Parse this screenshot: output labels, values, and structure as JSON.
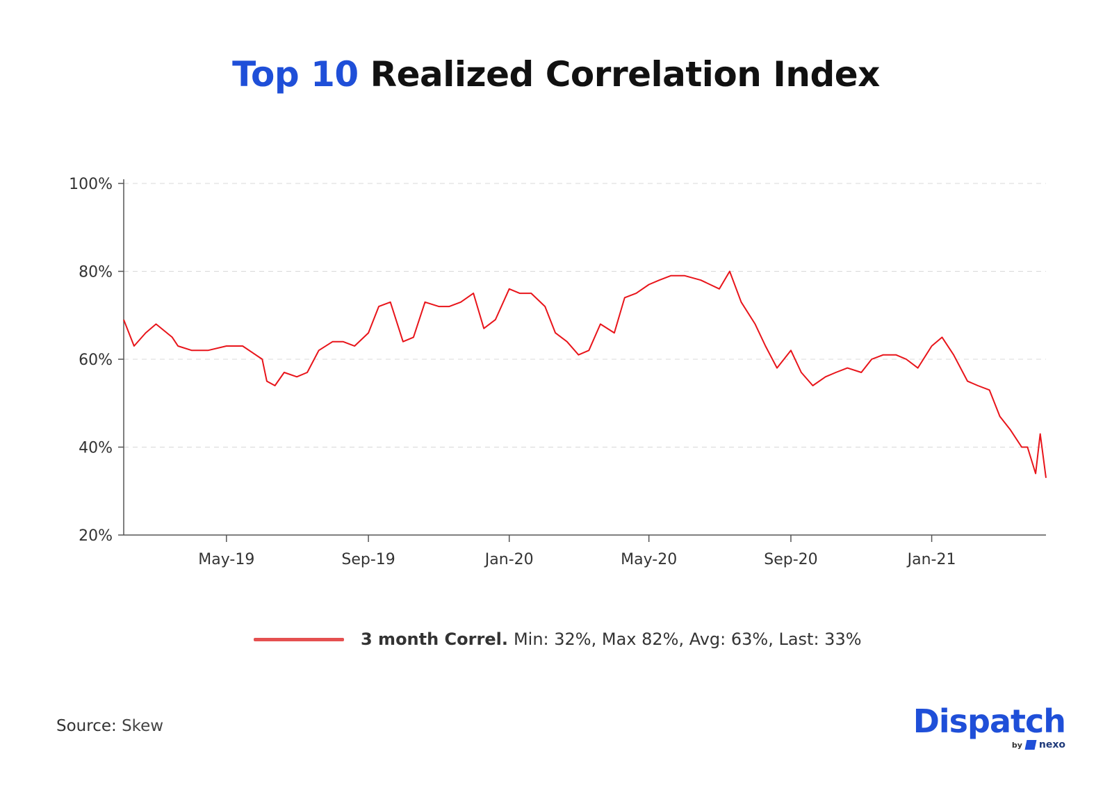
{
  "title": {
    "accent": "Top 10",
    "rest": "Realized Correlation Index"
  },
  "chart_data": {
    "type": "line",
    "title": "Top 10 Realized Correlation Index",
    "ylim": [
      20,
      100
    ],
    "yticks": [
      "100%",
      "80%",
      "60%",
      "40%",
      "20%"
    ],
    "ytick_values": [
      100,
      80,
      60,
      40,
      20
    ],
    "xlim": [
      "2019-02-01",
      "2021-04-10"
    ],
    "xticks": [
      "May-19",
      "Sep-19",
      "Jan-20",
      "May-20",
      "Sep-20",
      "Jan-21"
    ],
    "xtick_dates": [
      "2019-05-01",
      "2019-09-01",
      "2020-01-01",
      "2020-05-01",
      "2020-09-01",
      "2021-01-01"
    ],
    "grid": "horizontal dashed",
    "legend_position": "bottom-center",
    "series": [
      {
        "name": "3 month Correl.",
        "color": "#e8141a",
        "x": [
          "2019-02-01",
          "2019-02-10",
          "2019-02-20",
          "2019-03-01",
          "2019-03-15",
          "2019-03-20",
          "2019-04-01",
          "2019-04-15",
          "2019-05-01",
          "2019-05-15",
          "2019-06-01",
          "2019-06-05",
          "2019-06-12",
          "2019-06-20",
          "2019-07-01",
          "2019-07-10",
          "2019-07-20",
          "2019-08-01",
          "2019-08-10",
          "2019-08-20",
          "2019-09-01",
          "2019-09-10",
          "2019-09-20",
          "2019-10-01",
          "2019-10-10",
          "2019-10-20",
          "2019-11-01",
          "2019-11-10",
          "2019-11-20",
          "2019-12-01",
          "2019-12-10",
          "2019-12-20",
          "2020-01-01",
          "2020-01-10",
          "2020-01-20",
          "2020-02-01",
          "2020-02-10",
          "2020-02-20",
          "2020-03-01",
          "2020-03-10",
          "2020-03-20",
          "2020-04-01",
          "2020-04-10",
          "2020-04-20",
          "2020-05-01",
          "2020-05-10",
          "2020-05-20",
          "2020-06-01",
          "2020-06-15",
          "2020-07-01",
          "2020-07-10",
          "2020-07-20",
          "2020-08-01",
          "2020-08-10",
          "2020-08-20",
          "2020-09-01",
          "2020-09-10",
          "2020-09-20",
          "2020-10-01",
          "2020-10-10",
          "2020-10-20",
          "2020-11-01",
          "2020-11-10",
          "2020-11-20",
          "2020-12-01",
          "2020-12-10",
          "2020-12-20",
          "2021-01-01",
          "2021-01-10",
          "2021-01-20",
          "2021-02-01",
          "2021-02-10",
          "2021-02-20",
          "2021-03-01",
          "2021-03-10",
          "2021-03-20",
          "2021-03-25",
          "2021-04-01",
          "2021-04-05",
          "2021-04-10"
        ],
        "y": [
          69,
          63,
          66,
          68,
          65,
          63,
          62,
          62,
          63,
          63,
          60,
          55,
          54,
          57,
          56,
          57,
          62,
          64,
          64,
          63,
          66,
          72,
          73,
          64,
          65,
          73,
          72,
          72,
          73,
          75,
          67,
          69,
          76,
          75,
          75,
          72,
          66,
          64,
          61,
          62,
          68,
          66,
          74,
          75,
          77,
          78,
          79,
          79,
          78,
          76,
          80,
          73,
          68,
          63,
          58,
          62,
          57,
          54,
          56,
          57,
          58,
          57,
          60,
          61,
          61,
          60,
          58,
          63,
          65,
          61,
          55,
          54,
          53,
          47,
          44,
          40,
          40,
          34,
          43,
          33
        ],
        "stats": "Min: 32%, Max 82%, Avg: 63%, Last: 33%"
      }
    ]
  },
  "legend": {
    "series_label": "3 month Correl.",
    "stats": "Min: 32%, Max 82%, Avg: 63%, Last: 33%",
    "color": "#e55050"
  },
  "source": {
    "label": "Source:",
    "value": "Skew"
  },
  "brand": {
    "name": "Dispatch",
    "by": "by",
    "partner": "nexo",
    "color": "#1f4fd8"
  }
}
